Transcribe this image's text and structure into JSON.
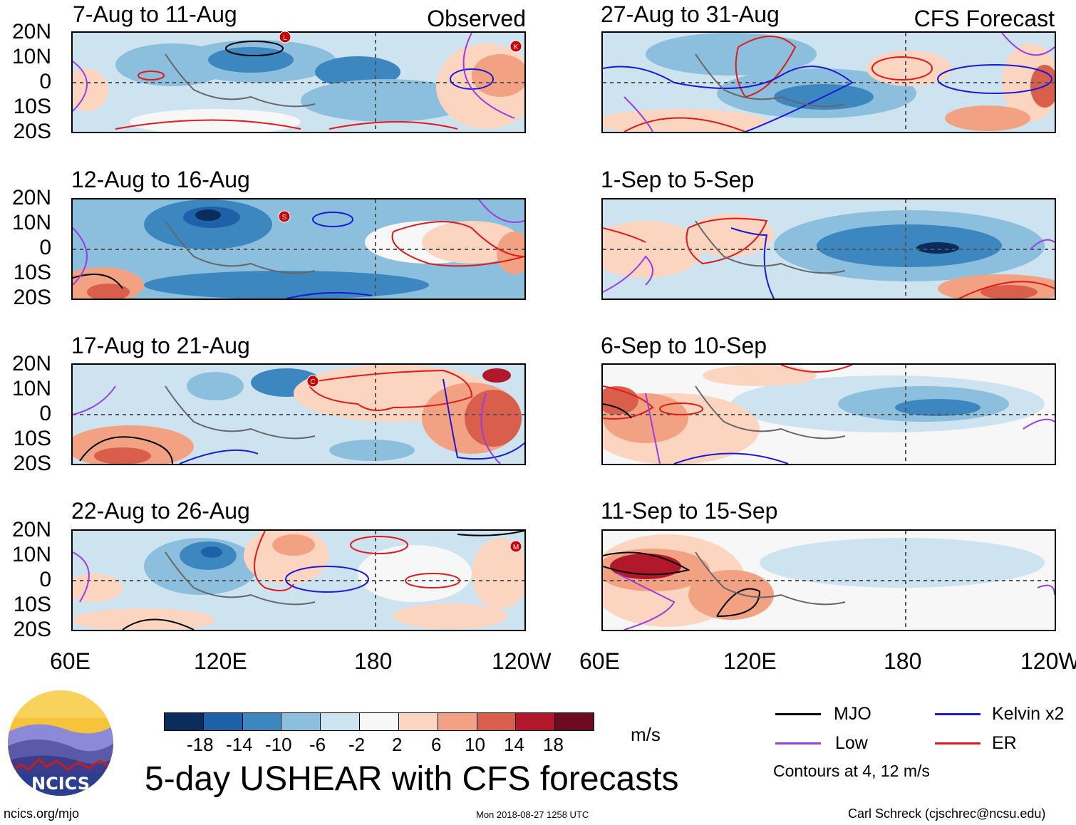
{
  "observed_label": "Observed",
  "forecast_label": "CFS Forecast",
  "panels_left": [
    {
      "title": "7-Aug to 11-Aug"
    },
    {
      "title": "12-Aug to 16-Aug"
    },
    {
      "title": "17-Aug to 21-Aug"
    },
    {
      "title": "22-Aug to 26-Aug"
    }
  ],
  "panels_right": [
    {
      "title": "27-Aug to 31-Aug"
    },
    {
      "title": "1-Sep to 5-Sep"
    },
    {
      "title": "6-Sep to 10-Sep"
    },
    {
      "title": "11-Sep to 15-Sep"
    }
  ],
  "lat_labels": [
    "20N",
    "10N",
    "0",
    "10S",
    "20S"
  ],
  "lon_labels": [
    "60E",
    "120E",
    "180",
    "120W"
  ],
  "storm_markers": {
    "a": "L",
    "b": "K",
    "c": "S",
    "d": "C",
    "e": "M"
  },
  "colorbar": {
    "ticks": [
      "-18",
      "-14",
      "-10",
      "-6",
      "-2",
      "2",
      "6",
      "10",
      "14",
      "18"
    ],
    "units": "m/s",
    "colors": [
      "#0b2d5e",
      "#1f61a8",
      "#3d87c0",
      "#8cbfdd",
      "#cde3f0",
      "#f7f7f7",
      "#fcd5c0",
      "#f2a283",
      "#d95f4c",
      "#b2182b",
      "#6d0a1f"
    ]
  },
  "legend": {
    "mjo": {
      "label": "MJO",
      "color": "#000000"
    },
    "kelvin": {
      "label": "Kelvin x2",
      "color": "#1a1ad6"
    },
    "low": {
      "label": "Low",
      "color": "#9b3ee0"
    },
    "er": {
      "label": "ER",
      "color": "#e01a1a"
    },
    "note": "Contours at 4, 12 m/s"
  },
  "title": "5-day USHEAR with CFS forecasts",
  "logo_text": "NCICS",
  "footer": {
    "url": "ncics.org/mjo",
    "timestamp": "Mon 2018-08-27 1258 UTC",
    "author": "Carl Schreck (cjschrec@ncsu.edu)"
  }
}
